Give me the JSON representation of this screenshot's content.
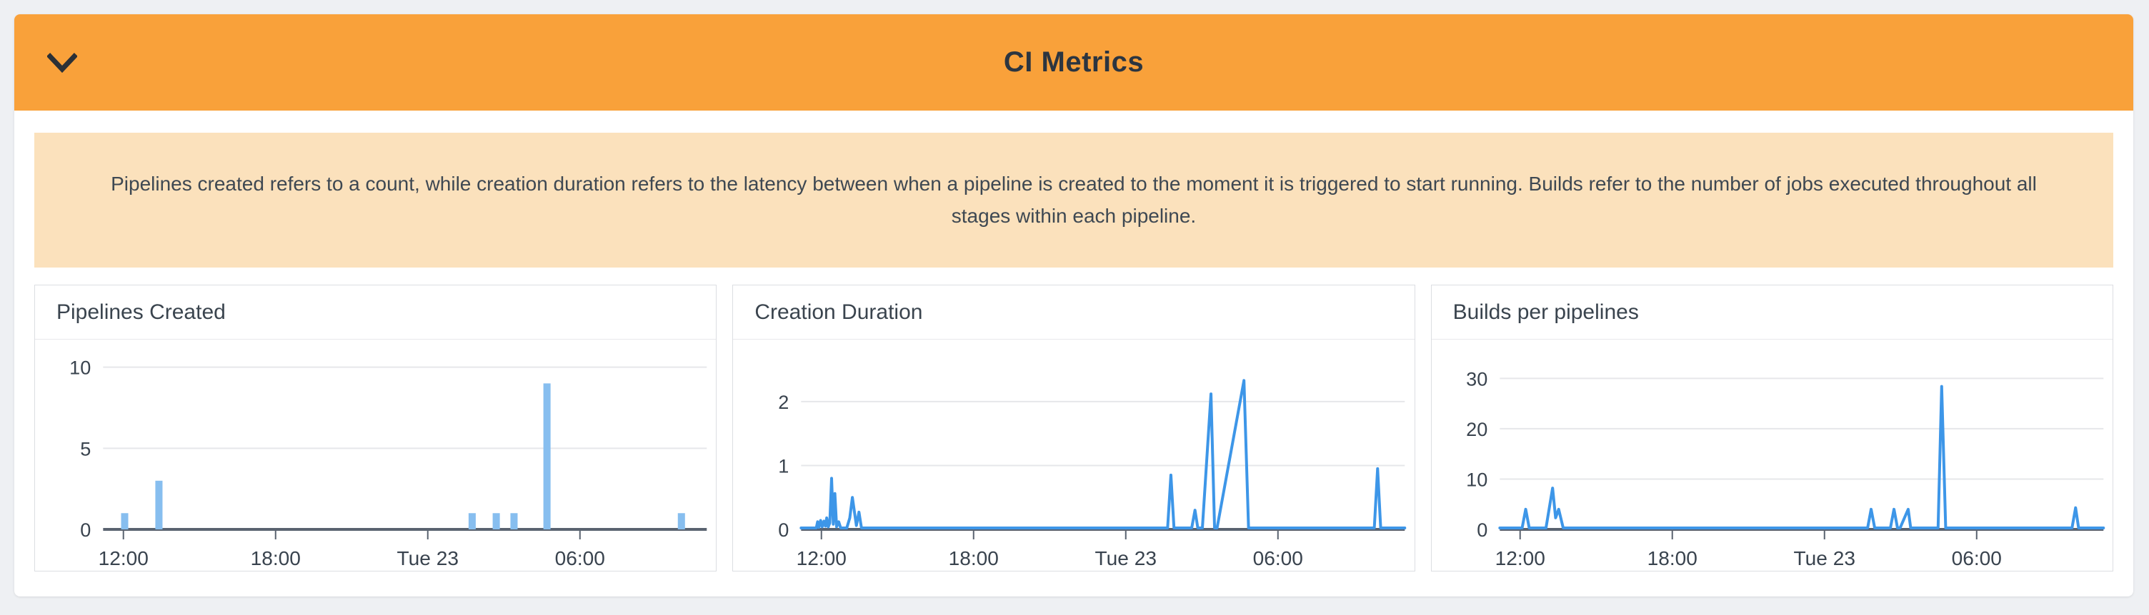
{
  "header": {
    "title": "CI Metrics",
    "chevron_icon": "chevron-down",
    "bg": "#f9a13a"
  },
  "info_banner": {
    "text": "Pipelines created refers to a count, while creation duration refers to the latency between when a pipeline is created to the moment it is triggered to start running. Builds refer to the number of jobs executed throughout all stages within each pipeline."
  },
  "colors": {
    "bar_fill": "#87beef",
    "line_stroke": "#3d96e8",
    "axis": "#5a6370",
    "grid": "#e6e7ea",
    "tick_text": "#39434e",
    "banner_bg": "#fbe1bc",
    "header_bg": "#f9a13a",
    "title_text": "#3a444e"
  },
  "chart_data": [
    {
      "type": "bar",
      "title": "Pipelines Created",
      "xlabel": "",
      "ylabel": "",
      "x_domain": [
        11.2,
        35.0
      ],
      "x_ticks": [
        {
          "h": 12,
          "label": "12:00"
        },
        {
          "h": 18,
          "label": "18:00"
        },
        {
          "h": 24,
          "label": "Tue 23"
        },
        {
          "h": 30,
          "label": "06:00"
        }
      ],
      "y_ticks": [
        0,
        5,
        10
      ],
      "ylim": [
        0,
        11.7
      ],
      "grid": true,
      "legend": "none",
      "bars": [
        {
          "h": 12.05,
          "v": 1
        },
        {
          "h": 13.4,
          "v": 3
        },
        {
          "h": 25.75,
          "v": 1
        },
        {
          "h": 26.7,
          "v": 1
        },
        {
          "h": 27.4,
          "v": 1
        },
        {
          "h": 28.7,
          "v": 9
        },
        {
          "h": 34.0,
          "v": 1
        }
      ]
    },
    {
      "type": "line",
      "title": "Creation Duration",
      "xlabel": "",
      "ylabel": "",
      "x_domain": [
        11.2,
        35.0
      ],
      "x_ticks": [
        {
          "h": 12,
          "label": "12:00"
        },
        {
          "h": 18,
          "label": "18:00"
        },
        {
          "h": 24,
          "label": "Tue 23"
        },
        {
          "h": 30,
          "label": "06:00"
        }
      ],
      "y_ticks": [
        0,
        1,
        2
      ],
      "ylim": [
        0,
        2.97
      ],
      "grid": true,
      "legend": "none",
      "points": [
        [
          11.2,
          0
        ],
        [
          11.8,
          0
        ],
        [
          11.85,
          0.12
        ],
        [
          11.9,
          0.03
        ],
        [
          11.97,
          0.14
        ],
        [
          12.03,
          0.04
        ],
        [
          12.1,
          0.13
        ],
        [
          12.16,
          0.05
        ],
        [
          12.21,
          0.18
        ],
        [
          12.27,
          0.04
        ],
        [
          12.33,
          0.1
        ],
        [
          12.4,
          0.8
        ],
        [
          12.47,
          0.08
        ],
        [
          12.53,
          0.56
        ],
        [
          12.6,
          0.04
        ],
        [
          12.68,
          0.12
        ],
        [
          12.76,
          0.01
        ],
        [
          13.0,
          0.01
        ],
        [
          13.12,
          0.18
        ],
        [
          13.22,
          0.5
        ],
        [
          13.3,
          0.28
        ],
        [
          13.38,
          0.06
        ],
        [
          13.48,
          0.27
        ],
        [
          13.58,
          0.01
        ],
        [
          14.0,
          0
        ],
        [
          25.65,
          0
        ],
        [
          25.78,
          0.85
        ],
        [
          25.9,
          0
        ],
        [
          26.6,
          0
        ],
        [
          26.73,
          0.3
        ],
        [
          26.84,
          0
        ],
        [
          27.02,
          0
        ],
        [
          27.36,
          2.12
        ],
        [
          27.5,
          0
        ],
        [
          27.6,
          0
        ],
        [
          28.66,
          2.33
        ],
        [
          28.84,
          0
        ],
        [
          33.8,
          0
        ],
        [
          33.93,
          0.95
        ],
        [
          34.05,
          0
        ],
        [
          35.0,
          0
        ]
      ]
    },
    {
      "type": "line",
      "title": "Builds per pipelines",
      "xlabel": "",
      "ylabel": "",
      "x_domain": [
        11.2,
        35.0
      ],
      "x_ticks": [
        {
          "h": 12,
          "label": "12:00"
        },
        {
          "h": 18,
          "label": "18:00"
        },
        {
          "h": 24,
          "label": "Tue 23"
        },
        {
          "h": 30,
          "label": "06:00"
        }
      ],
      "y_ticks": [
        0,
        10,
        20,
        30
      ],
      "ylim": [
        0,
        37.7
      ],
      "grid": true,
      "legend": "none",
      "points": [
        [
          11.2,
          0
        ],
        [
          12.08,
          0
        ],
        [
          12.22,
          4.0
        ],
        [
          12.36,
          0
        ],
        [
          13.02,
          0
        ],
        [
          13.28,
          8.2
        ],
        [
          13.4,
          2.3
        ],
        [
          13.52,
          4.0
        ],
        [
          13.7,
          0
        ],
        [
          25.7,
          0
        ],
        [
          25.84,
          4.0
        ],
        [
          25.98,
          0
        ],
        [
          26.6,
          0
        ],
        [
          26.74,
          4.0
        ],
        [
          26.88,
          0
        ],
        [
          26.98,
          0
        ],
        [
          27.3,
          4.0
        ],
        [
          27.4,
          0
        ],
        [
          28.48,
          0
        ],
        [
          28.62,
          28.4
        ],
        [
          28.78,
          0
        ],
        [
          33.76,
          0
        ],
        [
          33.9,
          4.3
        ],
        [
          34.02,
          0
        ],
        [
          35.0,
          0
        ]
      ]
    }
  ]
}
